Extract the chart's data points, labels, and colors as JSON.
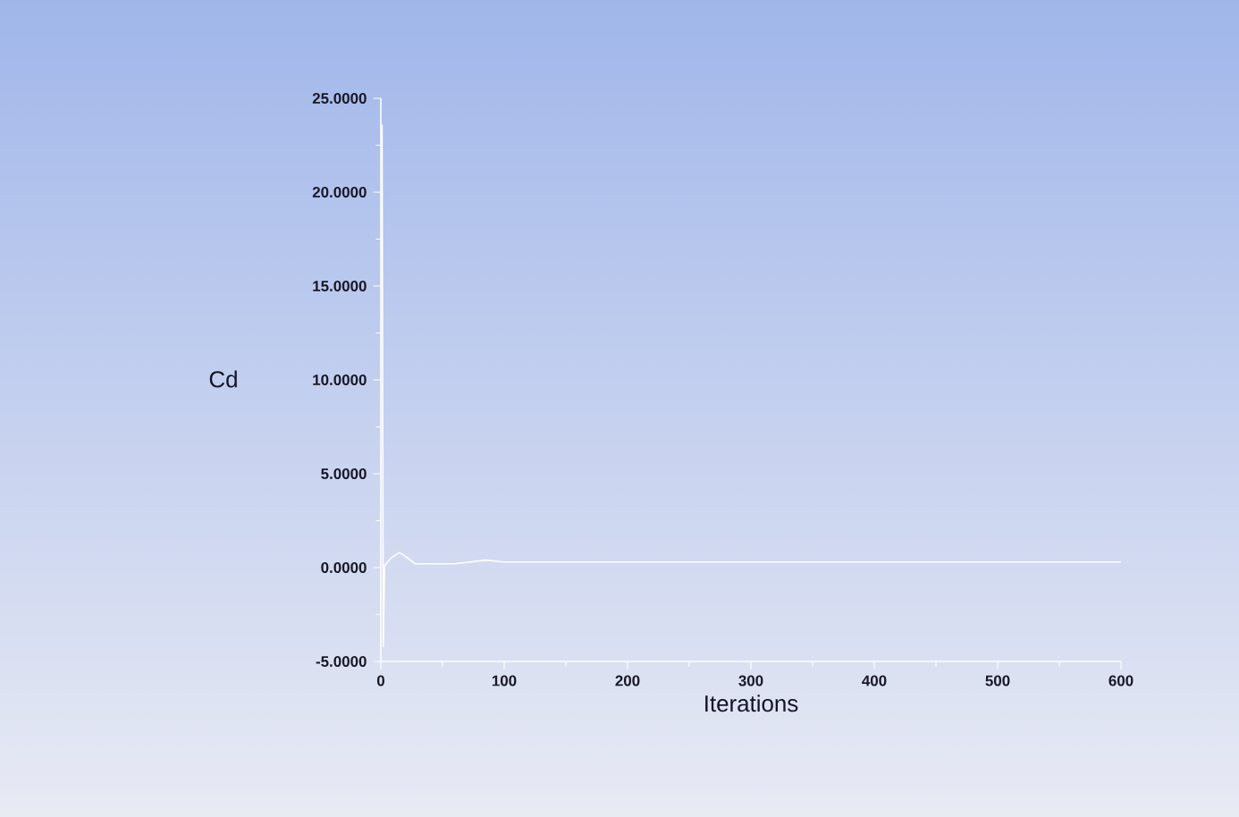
{
  "chart_data": {
    "type": "line",
    "xlabel": "Iterations",
    "ylabel": "Cd",
    "x": [
      1,
      2,
      3,
      8,
      15,
      22,
      28,
      40,
      60,
      85,
      100,
      150,
      200,
      250,
      300,
      350,
      400,
      450,
      500,
      550,
      600
    ],
    "series": [
      {
        "color": "#ffffff",
        "values": [
          23.6,
          -4.2,
          0.1,
          0.5,
          0.8,
          0.5,
          0.2,
          0.2,
          0.2,
          0.4,
          0.3,
          0.3,
          0.3,
          0.3,
          0.3,
          0.3,
          0.3,
          0.3,
          0.3,
          0.3,
          0.3
        ]
      }
    ],
    "xlim": [
      0,
      600
    ],
    "xticks": [
      0,
      100,
      200,
      300,
      400,
      500,
      600
    ],
    "ylim": [
      -5,
      25
    ],
    "yticks": [
      {
        "value": -5,
        "label": "-5.0000"
      },
      {
        "value": 0,
        "label": "0.0000"
      },
      {
        "value": 5,
        "label": "5.0000"
      },
      {
        "value": 10,
        "label": "10.0000"
      },
      {
        "value": 15,
        "label": "15.0000"
      },
      {
        "value": 20,
        "label": "20.0000"
      },
      {
        "value": 25,
        "label": "25.0000"
      }
    ],
    "marker": "none",
    "line_style": "solid"
  }
}
